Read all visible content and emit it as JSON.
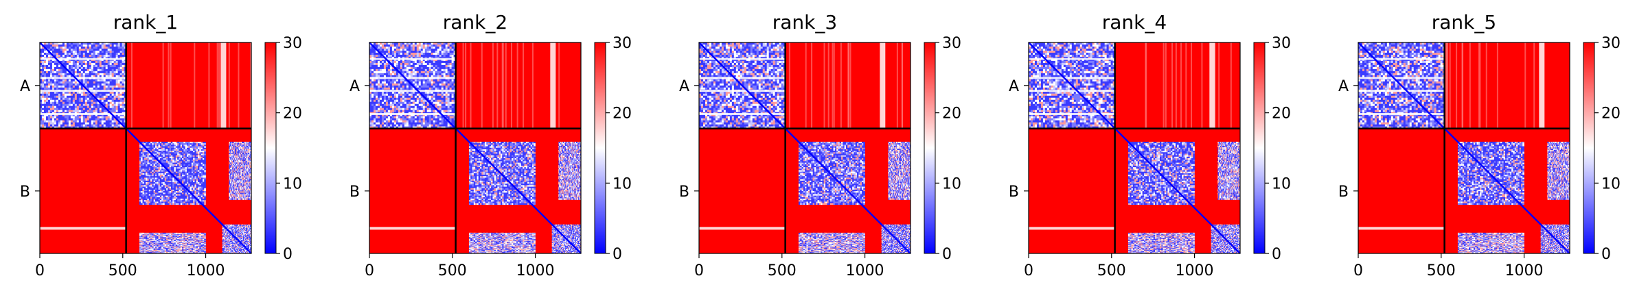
{
  "chart_data": [
    {
      "type": "heatmap",
      "title": "rank_1",
      "xticks": [
        0,
        500,
        1000
      ],
      "xlim": [
        0,
        1275
      ],
      "chain_labels": [
        "A",
        "B"
      ],
      "chain_boundaries": [
        0,
        520,
        1275
      ],
      "colorbar": {
        "min": 0,
        "max": 30,
        "ticks": [
          0,
          10,
          20,
          30
        ],
        "colormap": "bwr",
        "colors": [
          "#0000ff",
          "#ffffff",
          "#ff0000"
        ]
      }
    },
    {
      "type": "heatmap",
      "title": "rank_2",
      "xticks": [
        0,
        500,
        1000
      ],
      "xlim": [
        0,
        1275
      ],
      "chain_labels": [
        "A",
        "B"
      ],
      "chain_boundaries": [
        0,
        520,
        1275
      ],
      "colorbar": {
        "min": 0,
        "max": 30,
        "ticks": [
          0,
          10,
          20,
          30
        ],
        "colormap": "bwr",
        "colors": [
          "#0000ff",
          "#ffffff",
          "#ff0000"
        ]
      }
    },
    {
      "type": "heatmap",
      "title": "rank_3",
      "xticks": [
        0,
        500,
        1000
      ],
      "xlim": [
        0,
        1275
      ],
      "chain_labels": [
        "A",
        "B"
      ],
      "chain_boundaries": [
        0,
        520,
        1275
      ],
      "colorbar": {
        "min": 0,
        "max": 30,
        "ticks": [
          0,
          10,
          20,
          30
        ],
        "colormap": "bwr",
        "colors": [
          "#0000ff",
          "#ffffff",
          "#ff0000"
        ]
      }
    },
    {
      "type": "heatmap",
      "title": "rank_4",
      "xticks": [
        0,
        500,
        1000
      ],
      "xlim": [
        0,
        1275
      ],
      "chain_labels": [
        "A",
        "B"
      ],
      "chain_boundaries": [
        0,
        520,
        1275
      ],
      "colorbar": {
        "min": 0,
        "max": 30,
        "ticks": [
          0,
          10,
          20,
          30
        ],
        "colormap": "bwr",
        "colors": [
          "#0000ff",
          "#ffffff",
          "#ff0000"
        ]
      }
    },
    {
      "type": "heatmap",
      "title": "rank_5",
      "xticks": [
        0,
        500,
        1000
      ],
      "xlim": [
        0,
        1275
      ],
      "chain_labels": [
        "A",
        "B"
      ],
      "chain_boundaries": [
        0,
        520,
        1275
      ],
      "colorbar": {
        "min": 0,
        "max": 30,
        "ticks": [
          0,
          10,
          20,
          30
        ],
        "colormap": "bwr",
        "colors": [
          "#0000ff",
          "#ffffff",
          "#ff0000"
        ]
      }
    }
  ]
}
